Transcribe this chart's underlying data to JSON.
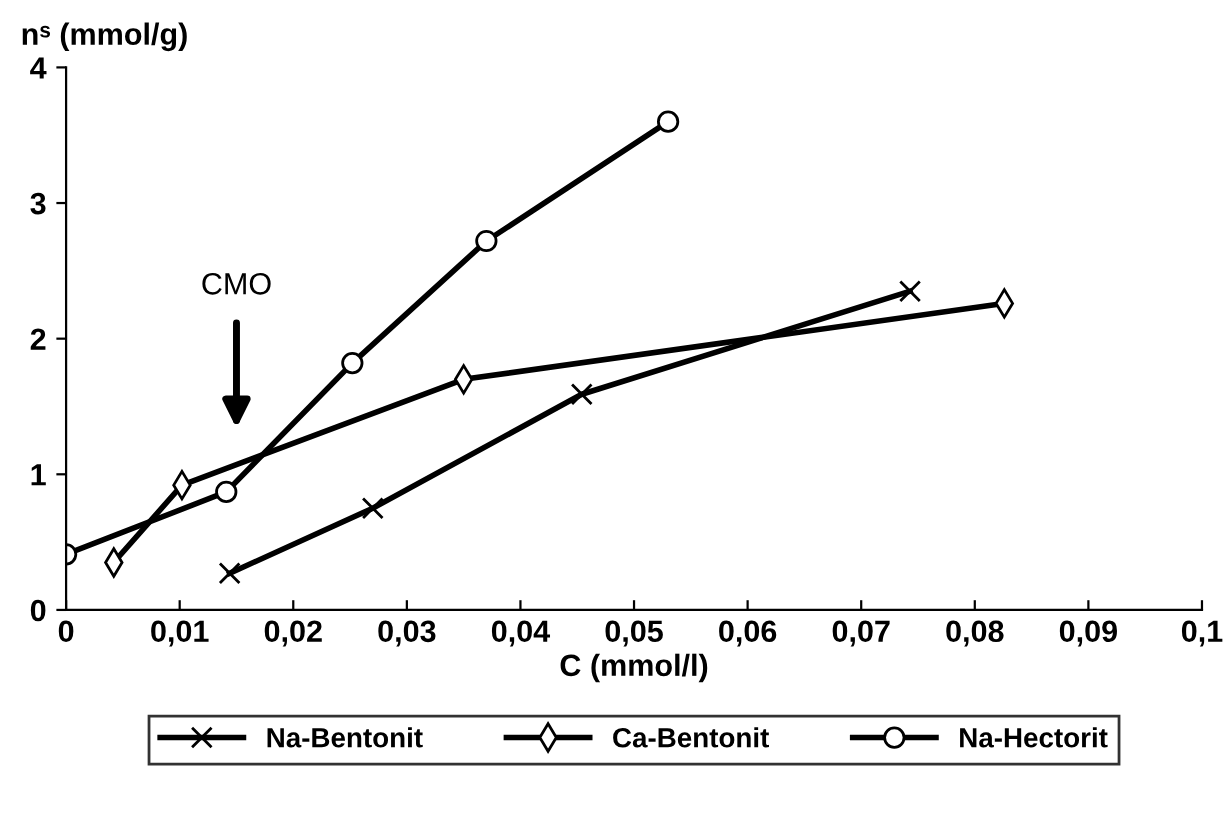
{
  "chart_data": {
    "type": "line",
    "xlabel": "C (mmol/l)",
    "ylabel": "nˢ (mmol/g)",
    "series": [
      {
        "name": "Na-Bentonit",
        "color": "#000000",
        "marker": "cross",
        "x": [
          0.0144,
          0.027,
          0.0454,
          0.0743
        ],
        "values": [
          0.27,
          0.75,
          1.59,
          2.35
        ]
      },
      {
        "name": "Ca-Bentonit",
        "color": "#000000",
        "marker": "diamond",
        "x": [
          0.0042,
          0.0102,
          0.035,
          0.0826
        ],
        "values": [
          0.35,
          0.92,
          1.7,
          2.26
        ]
      },
      {
        "name": "Na-Hectorit",
        "color": "#000000",
        "marker": "circle",
        "x": [
          0,
          0.0141,
          0.0252,
          0.037,
          0.053
        ],
        "values": [
          0.41,
          0.87,
          1.82,
          2.72,
          3.6
        ]
      }
    ],
    "xlim": [
      0,
      0.1
    ],
    "ylim": [
      0,
      4
    ],
    "xticks": [
      {
        "value": 0,
        "label": "0"
      },
      {
        "value": 0.01,
        "label": "0,01"
      },
      {
        "value": 0.02,
        "label": "0,02"
      },
      {
        "value": 0.03,
        "label": "0,03"
      },
      {
        "value": 0.04,
        "label": "0,04"
      },
      {
        "value": 0.05,
        "label": "0,05"
      },
      {
        "value": 0.06,
        "label": "0,06"
      },
      {
        "value": 0.07,
        "label": "0,07"
      },
      {
        "value": 0.08,
        "label": "0,08"
      },
      {
        "value": 0.09,
        "label": "0,09"
      },
      {
        "value": 0.1,
        "label": "0,1"
      }
    ],
    "yticks": [
      0,
      1,
      2,
      3,
      4
    ],
    "annotations": [
      "CMO"
    ],
    "grid": false,
    "legend": "bottom",
    "line_style": "solid"
  }
}
